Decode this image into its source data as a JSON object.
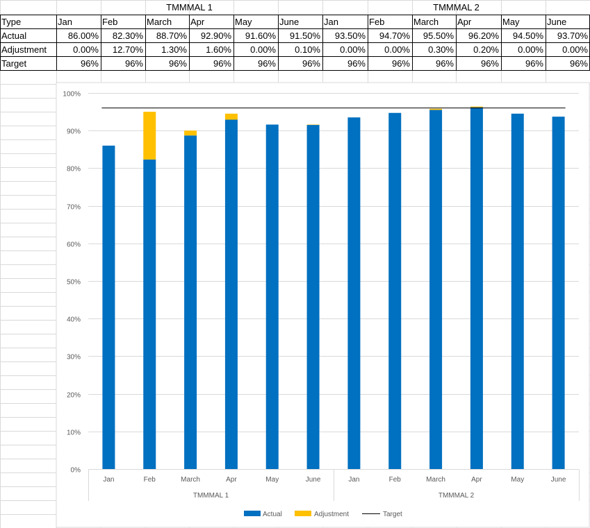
{
  "table": {
    "groups": [
      "TMMMAL 1",
      "TMMMAL 2"
    ],
    "header_label": "Type",
    "months": [
      "Jan",
      "Feb",
      "March",
      "Apr",
      "May",
      "June",
      "Jan",
      "Feb",
      "March",
      "Apr",
      "May",
      "June"
    ],
    "rows": [
      {
        "label": "Actual",
        "values": [
          "86.00%",
          "82.30%",
          "88.70%",
          "92.90%",
          "91.60%",
          "91.50%",
          "93.50%",
          "94.70%",
          "95.50%",
          "96.20%",
          "94.50%",
          "93.70%"
        ]
      },
      {
        "label": "Adjustment",
        "values": [
          "0.00%",
          "12.70%",
          "1.30%",
          "1.60%",
          "0.00%",
          "0.10%",
          "0.00%",
          "0.00%",
          "0.30%",
          "0.20%",
          "0.00%",
          "0.00%"
        ]
      },
      {
        "label": "Target",
        "values": [
          "96%",
          "96%",
          "96%",
          "96%",
          "96%",
          "96%",
          "96%",
          "96%",
          "96%",
          "96%",
          "96%",
          "96%"
        ]
      }
    ]
  },
  "chart_data": {
    "type": "bar",
    "stacked": true,
    "categories": [
      "Jan",
      "Feb",
      "March",
      "Apr",
      "May",
      "June",
      "Jan",
      "Feb",
      "March",
      "Apr",
      "May",
      "June"
    ],
    "groups": [
      {
        "name": "TMMMAL 1",
        "count": 6
      },
      {
        "name": "TMMMAL 2",
        "count": 6
      }
    ],
    "series": [
      {
        "name": "Actual",
        "kind": "bar",
        "color": "#0070C0",
        "values": [
          86.0,
          82.3,
          88.7,
          92.9,
          91.6,
          91.5,
          93.5,
          94.7,
          95.5,
          96.2,
          94.5,
          93.7
        ]
      },
      {
        "name": "Adjustment",
        "kind": "bar",
        "color": "#FFC000",
        "values": [
          0.0,
          12.7,
          1.3,
          1.6,
          0.0,
          0.1,
          0.0,
          0.0,
          0.3,
          0.2,
          0.0,
          0.0
        ]
      },
      {
        "name": "Target",
        "kind": "line",
        "color": "#000000",
        "values": [
          96,
          96,
          96,
          96,
          96,
          96,
          96,
          96,
          96,
          96,
          96,
          96
        ]
      }
    ],
    "yticks": [
      "0%",
      "10%",
      "20%",
      "30%",
      "40%",
      "50%",
      "60%",
      "70%",
      "80%",
      "90%",
      "100%"
    ],
    "ylim": [
      0,
      100
    ],
    "grid": true,
    "legend_position": "bottom"
  }
}
